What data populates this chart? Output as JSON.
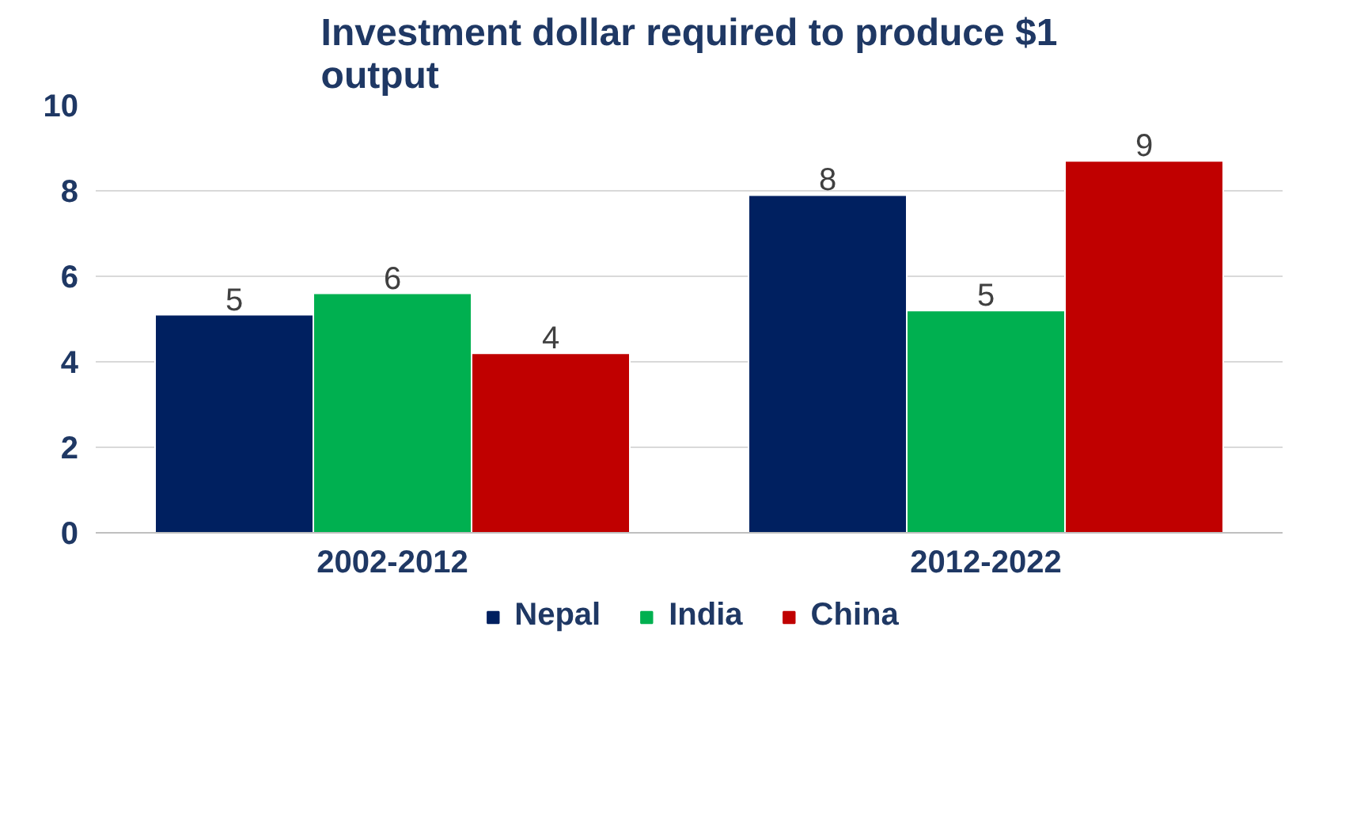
{
  "chart_data": {
    "type": "bar",
    "title": "Investment dollar required to produce $1 output",
    "categories": [
      "2002-2012",
      "2012-2022"
    ],
    "series": [
      {
        "name": "Nepal",
        "color": "#002060",
        "values": [
          5.1,
          7.9
        ],
        "value_labels": [
          "5",
          "8"
        ]
      },
      {
        "name": "India",
        "color": "#00b050",
        "values": [
          5.6,
          5.2
        ],
        "value_labels": [
          "6",
          "5"
        ]
      },
      {
        "name": "China",
        "color": "#c00000",
        "values": [
          4.2,
          8.7
        ],
        "value_labels": [
          "4",
          "9"
        ]
      }
    ],
    "ylim": [
      0,
      10
    ],
    "yticks": [
      0,
      2,
      4,
      6,
      8,
      10
    ],
    "grid": "y",
    "legend": "bottom"
  }
}
